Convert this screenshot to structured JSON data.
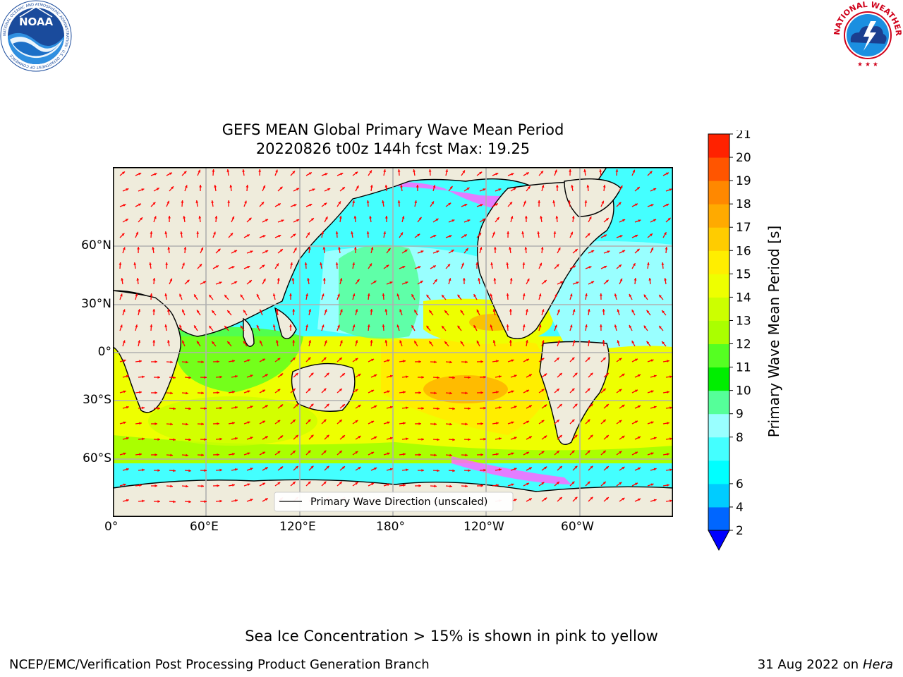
{
  "header": {
    "title_line1": "GEFS MEAN Global Primary Wave Mean Period",
    "title_line2": "20220826 t00z 144h fcst   Max: 19.25"
  },
  "logos": {
    "left": {
      "name": "NOAA",
      "ring_text": "NATIONAL OCEANIC AND ATMOSPHERIC ADMINISTRATION · U.S. DEPARTMENT OF COMMERCE",
      "color": "#1a4b9c"
    },
    "right": {
      "name": "NATIONAL WEATHER SERVICE",
      "color": "#d0021b"
    }
  },
  "map": {
    "x_ticks": [
      "0°",
      "60°E",
      "120°E",
      "180°",
      "120°W",
      "60°W"
    ],
    "y_ticks": [
      "60°N",
      "30°N",
      "0°",
      "30°S",
      "60°S"
    ],
    "legend_text": "Primary Wave Direction (unscaled)",
    "land_color": "#efecdc",
    "arrow_color": "#ff0000"
  },
  "colorbar": {
    "label": "Primary Wave Mean Period [s]",
    "levels": [
      "2",
      "4",
      "6",
      "7",
      "8",
      "9",
      "10",
      "11",
      "12",
      "13",
      "14",
      "15",
      "16",
      "17",
      "18",
      "19",
      "20",
      "21"
    ],
    "tick_labels": [
      "2",
      "4",
      "6",
      "8",
      "9",
      "10",
      "11",
      "12",
      "13",
      "14",
      "15",
      "16",
      "17",
      "18",
      "19",
      "20",
      "21"
    ],
    "colors": [
      "#0066ff",
      "#00ccff",
      "#00ffff",
      "#44ffff",
      "#99ffff",
      "#55ff99",
      "#00ee00",
      "#55ff22",
      "#aaff00",
      "#ccff00",
      "#eeff00",
      "#ffee00",
      "#ffcc00",
      "#ffaa00",
      "#ff8800",
      "#ff5500",
      "#ff2200",
      "#ff0000"
    ],
    "under_color": "#0000ff"
  },
  "footer": {
    "ice_note": "Sea Ice Concentration > 15% is shown in pink to yellow",
    "producer": "NCEP/EMC/Verification Post Processing Product Generation Branch",
    "date_text": "31 Aug 2022 on",
    "machine": "Hera"
  }
}
